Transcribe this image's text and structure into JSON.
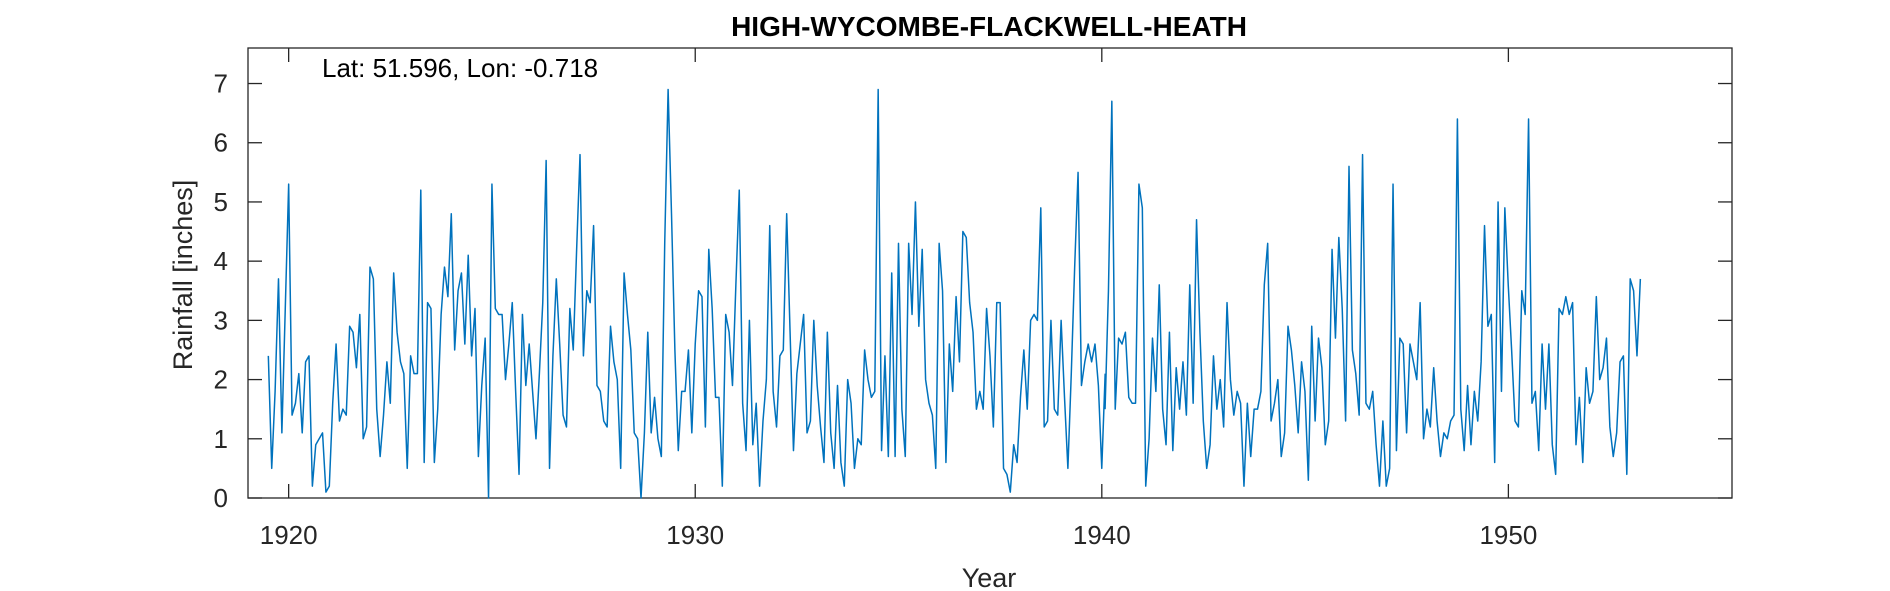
{
  "chart_data": {
    "type": "line",
    "title": "HIGH-WYCOMBE-FLACKWELL-HEATH",
    "annotation": "Lat: 51.596, Lon: -0.718",
    "xlabel": "Year",
    "ylabel": "Rainfall [inches]",
    "xlim": [
      1919,
      1955.5
    ],
    "ylim": [
      0,
      7.6
    ],
    "xticks": [
      1920,
      1930,
      1940,
      1950
    ],
    "yticks": [
      0,
      1,
      2,
      3,
      4,
      5,
      6,
      7
    ],
    "grid": false,
    "line_color": "#0072BD",
    "series": [
      {
        "segments": [
          {
            "x_start": 1919.5,
            "x_step": 0.08333,
            "values": [
              2.4,
              0.5,
              1.8,
              3.7,
              1.1,
              3.2,
              5.3,
              1.4,
              1.6,
              2.1,
              1.1,
              2.3,
              2.4,
              0.2,
              0.9,
              1.0,
              1.1,
              0.1,
              0.2,
              1.6,
              2.6,
              1.3,
              1.5,
              1.4,
              2.9,
              2.8,
              2.2,
              3.1,
              1.0,
              1.2,
              3.9,
              3.7,
              1.5,
              0.7,
              1.4,
              2.3,
              1.6,
              3.8,
              2.8,
              2.3,
              2.1,
              0.5,
              2.4,
              2.1,
              2.1,
              5.2,
              0.6,
              3.3,
              3.2,
              0.6,
              1.5,
              3.1,
              3.9,
              3.4,
              4.8,
              2.5,
              3.5,
              3.8,
              2.6,
              4.1,
              2.4,
              3.2,
              0.7,
              1.9,
              2.7,
              0.0,
              5.3,
              3.2,
              3.1,
              3.1,
              2.0,
              2.6,
              3.3,
              1.8,
              0.4,
              3.1,
              1.9,
              2.6,
              1.8,
              1.0,
              2.1,
              3.3,
              5.7,
              0.5,
              2.4,
              3.7,
              2.6,
              1.4,
              1.2,
              3.2,
              2.5,
              4.2,
              5.8,
              2.4,
              3.5,
              3.3,
              4.6,
              1.9,
              1.8,
              1.3,
              1.2,
              2.9,
              2.3,
              2.0,
              0.5,
              3.8,
              3.1,
              2.5,
              1.1,
              1.0,
              0.0,
              1.1,
              2.8,
              1.1,
              1.7,
              1.0,
              0.7,
              4.3,
              6.9,
              4.8,
              2.5,
              0.8,
              1.8,
              1.8,
              2.5,
              1.1,
              2.6,
              3.5,
              3.4,
              1.2,
              4.2,
              3.2,
              1.7,
              1.7,
              0.2,
              3.1,
              2.8,
              1.9,
              3.6,
              5.2,
              1.6,
              0.8,
              3.0,
              0.9,
              1.6,
              0.2,
              1.3,
              2.0,
              4.6,
              1.8,
              1.2,
              2.4,
              2.5,
              4.8,
              2.8,
              0.8,
              2.1,
              2.6,
              3.1,
              1.1,
              1.3,
              3.0,
              1.9,
              1.2,
              0.6,
              2.8,
              1.1,
              0.5,
              1.9,
              0.6,
              0.2,
              2.0,
              1.6,
              0.5,
              1.0,
              0.9,
              2.5,
              2.0,
              1.7,
              1.8,
              6.9,
              0.8,
              2.4,
              0.7,
              3.8,
              0.7,
              4.3,
              1.5,
              0.7,
              4.3,
              3.1,
              5.0,
              2.9,
              4.2,
              2.0,
              1.6,
              1.4,
              0.5,
              4.3,
              3.5,
              0.6,
              2.6,
              1.8,
              3.4,
              2.3,
              4.5,
              4.4,
              3.3,
              2.8,
              1.5,
              1.8,
              1.5,
              3.2,
              2.4,
              1.2,
              3.3,
              3.3,
              0.5,
              0.4,
              0.1,
              0.9,
              0.6,
              1.7,
              2.5,
              1.5,
              3.0,
              3.1,
              3.0,
              4.9,
              1.2,
              1.3,
              3.0,
              1.5,
              1.4,
              3.0,
              1.7,
              0.5,
              2.1,
              3.9,
              5.5,
              1.9,
              2.3,
              2.6,
              2.3,
              2.6,
              1.9,
              0.5,
              2.1
            ]
          },
          {
            "x_start": 1940.08,
            "x_step": 0.08333,
            "values": [
              1.5,
              3.5,
              6.7,
              1.5,
              2.7,
              2.6,
              2.8,
              1.7,
              1.6,
              1.6,
              5.3,
              4.9,
              0.2,
              1.0,
              2.7,
              1.8,
              3.6,
              1.5,
              0.9,
              2.8,
              0.8,
              2.2,
              1.5,
              2.3,
              1.4,
              3.6,
              1.6,
              4.7,
              2.8,
              1.3,
              0.5,
              0.9,
              2.4,
              1.5,
              2.0,
              1.2,
              3.3,
              2.0,
              1.4,
              1.8,
              1.6,
              0.2,
              1.6,
              0.7,
              1.5,
              1.5,
              1.8,
              3.6,
              4.3,
              1.3,
              1.6,
              2.0,
              0.7,
              1.1,
              2.9,
              2.5,
              1.9,
              1.1,
              2.3,
              1.8,
              0.3,
              2.9,
              1.3,
              2.7,
              2.2,
              0.9,
              1.3,
              4.2,
              2.7,
              4.4,
              3.2,
              1.3,
              5.6,
              2.5,
              2.1,
              1.4,
              5.8,
              1.6,
              1.5,
              1.8,
              0.9,
              0.2,
              1.3,
              0.2,
              0.5,
              5.3,
              0.8,
              2.7,
              2.6,
              1.1,
              2.6,
              2.3,
              2.0,
              3.3,
              1.0,
              1.5,
              1.2,
              2.2,
              1.3,
              0.7,
              1.1,
              1.0,
              1.3,
              1.4,
              6.4,
              1.5,
              0.8,
              1.9,
              0.9,
              1.8,
              1.3,
              2.3,
              4.6,
              2.9,
              3.1,
              0.6,
              5.0,
              1.8,
              4.9,
              3.6,
              2.5,
              1.3,
              1.2,
              3.5,
              3.1,
              6.4,
              1.6,
              1.8,
              0.8,
              2.6,
              1.5,
              2.6,
              0.9,
              0.4,
              3.2,
              3.1,
              3.4,
              3.1,
              3.3,
              0.9,
              1.7,
              0.6,
              2.2,
              1.6,
              1.8,
              3.4,
              2.0,
              2.2,
              2.7,
              1.2,
              0.7,
              1.1,
              2.3,
              2.4,
              0.4,
              3.7,
              3.5,
              2.4,
              3.7
            ]
          }
        ]
      }
    ]
  }
}
